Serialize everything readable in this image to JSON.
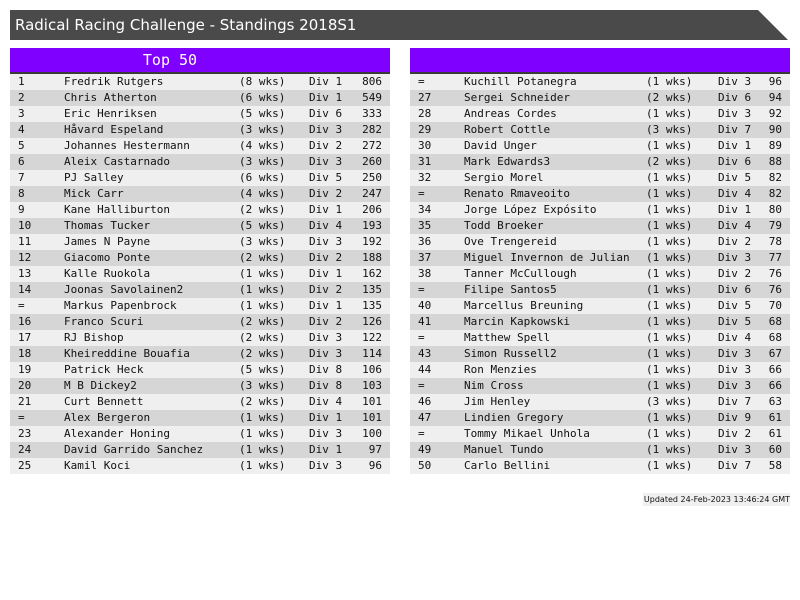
{
  "title": "Radical Racing Challenge - Standings 2018S1",
  "left_panel": {
    "header": "Top 50"
  },
  "right_panel": {
    "header": ""
  },
  "colors": {
    "accent": "#8000ff",
    "title_bg": "#4a4a4a",
    "row_light": "#efefef",
    "row_dark": "#d6d6d6"
  },
  "left_rows": [
    [
      "1",
      "Fredrik Rutgers",
      "(8 wks)",
      "Div 1",
      "806"
    ],
    [
      "2",
      "Chris Atherton",
      "(6 wks)",
      "Div 1",
      "549"
    ],
    [
      "3",
      "Eric Henriksen",
      "(5 wks)",
      "Div 6",
      "333"
    ],
    [
      "4",
      "Håvard Espeland",
      "(3 wks)",
      "Div 3",
      "282"
    ],
    [
      "5",
      "Johannes Hestermann",
      "(4 wks)",
      "Div 2",
      "272"
    ],
    [
      "6",
      "Aleix Castarnado",
      "(3 wks)",
      "Div 3",
      "260"
    ],
    [
      "7",
      "PJ Salley",
      "(6 wks)",
      "Div 5",
      "250"
    ],
    [
      "8",
      "Mick Carr",
      "(4 wks)",
      "Div 2",
      "247"
    ],
    [
      "9",
      "Kane Halliburton",
      "(2 wks)",
      "Div 1",
      "206"
    ],
    [
      "10",
      "Thomas Tucker",
      "(5 wks)",
      "Div 4",
      "193"
    ],
    [
      "11",
      "James N Payne",
      "(3 wks)",
      "Div 3",
      "192"
    ],
    [
      "12",
      "Giacomo Ponte",
      "(2 wks)",
      "Div 2",
      "188"
    ],
    [
      "13",
      "Kalle Ruokola",
      "(1 wks)",
      "Div 1",
      "162"
    ],
    [
      "14",
      "Joonas Savolainen2",
      "(1 wks)",
      "Div 2",
      "135"
    ],
    [
      "=",
      "Markus Papenbrock",
      "(1 wks)",
      "Div 1",
      "135"
    ],
    [
      "16",
      "Franco Scuri",
      "(2 wks)",
      "Div 2",
      "126"
    ],
    [
      "17",
      "RJ Bishop",
      "(2 wks)",
      "Div 3",
      "122"
    ],
    [
      "18",
      "Kheireddine Bouafia",
      "(2 wks)",
      "Div 3",
      "114"
    ],
    [
      "19",
      "Patrick Heck",
      "(5 wks)",
      "Div 8",
      "106"
    ],
    [
      "20",
      "M B Dickey2",
      "(3 wks)",
      "Div 8",
      "103"
    ],
    [
      "21",
      "Curt Bennett",
      "(2 wks)",
      "Div 4",
      "101"
    ],
    [
      "=",
      "Alex Bergeron",
      "(1 wks)",
      "Div 1",
      "101"
    ],
    [
      "23",
      "Alexander Honing",
      "(1 wks)",
      "Div 3",
      "100"
    ],
    [
      "24",
      "David Garrido Sanchez",
      "(1 wks)",
      "Div 1",
      "97"
    ],
    [
      "25",
      "Kamil Koci",
      "(1 wks)",
      "Div 3",
      "96"
    ]
  ],
  "right_rows": [
    [
      "=",
      "Kuchill Potanegra",
      "(1 wks)",
      "Div 3",
      "96"
    ],
    [
      "27",
      "Sergei Schneider",
      "(2 wks)",
      "Div 6",
      "94"
    ],
    [
      "28",
      "Andreas Cordes",
      "(1 wks)",
      "Div 3",
      "92"
    ],
    [
      "29",
      "Robert Cottle",
      "(3 wks)",
      "Div 7",
      "90"
    ],
    [
      "30",
      "David Unger",
      "(1 wks)",
      "Div 1",
      "89"
    ],
    [
      "31",
      "Mark Edwards3",
      "(2 wks)",
      "Div 6",
      "88"
    ],
    [
      "32",
      "Sergio Morel",
      "(1 wks)",
      "Div 5",
      "82"
    ],
    [
      "=",
      "Renato Rmaveoito",
      "(1 wks)",
      "Div 4",
      "82"
    ],
    [
      "34",
      "Jorge López Expósito",
      "(1 wks)",
      "Div 1",
      "80"
    ],
    [
      "35",
      "Todd Broeker",
      "(1 wks)",
      "Div 4",
      "79"
    ],
    [
      "36",
      "Ove Trengereid",
      "(1 wks)",
      "Div 2",
      "78"
    ],
    [
      "37",
      "Miguel Invernon de Julian",
      "(1 wks)",
      "Div 3",
      "77"
    ],
    [
      "38",
      "Tanner McCullough",
      "(1 wks)",
      "Div 2",
      "76"
    ],
    [
      "=",
      "Filipe Santos5",
      "(1 wks)",
      "Div 6",
      "76"
    ],
    [
      "40",
      "Marcellus Breuning",
      "(1 wks)",
      "Div 5",
      "70"
    ],
    [
      "41",
      "Marcin Kapkowski",
      "(1 wks)",
      "Div 5",
      "68"
    ],
    [
      "=",
      "Matthew Spell",
      "(1 wks)",
      "Div 4",
      "68"
    ],
    [
      "43",
      "Simon Russell2",
      "(1 wks)",
      "Div 3",
      "67"
    ],
    [
      "44",
      "Ron Menzies",
      "(1 wks)",
      "Div 3",
      "66"
    ],
    [
      "=",
      "Nim Cross",
      "(1 wks)",
      "Div 3",
      "66"
    ],
    [
      "46",
      "Jim Henley",
      "(3 wks)",
      "Div 7",
      "63"
    ],
    [
      "47",
      "Lindien Gregory",
      "(1 wks)",
      "Div 9",
      "61"
    ],
    [
      "=",
      "Tommy Mikael Unhola",
      "(1 wks)",
      "Div 2",
      "61"
    ],
    [
      "49",
      "Manuel Tundo",
      "(1 wks)",
      "Div 3",
      "60"
    ],
    [
      "50",
      "Carlo Bellini",
      "(1 wks)",
      "Div 7",
      "58"
    ]
  ],
  "footer": "Updated 24-Feb-2023 13:46:24 GMT"
}
